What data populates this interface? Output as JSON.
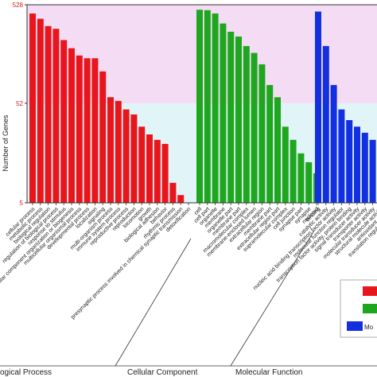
{
  "chart_data": {
    "type": "bar",
    "ylabel": "Number of Genes",
    "y_scale": "log",
    "ylim": [
      5,
      528
    ],
    "yticks": [
      5,
      52,
      528
    ],
    "band_colors": {
      "upper": "#f5dcf5",
      "lower": "#e1f4f7"
    },
    "group_titles": [
      "Biological Process",
      "Cellular Component",
      "Molecular Function"
    ],
    "group_titles_shown": [
      "ogical Process",
      "Cellular Component",
      "Molecular Function"
    ],
    "legend_entries": [
      "",
      "",
      "Mo"
    ],
    "series": [
      {
        "name": "Biological Process",
        "color": "#e8161c",
        "categories": [
          "cellular process",
          "metabolic process",
          "biological regulation",
          "regulation of biological process",
          "response to stimulus",
          "cellular component organization or biogenesis",
          "multicellular organismal process",
          "developmental process",
          "localization",
          "signaling",
          "multi-organism process",
          "immune system process",
          "reproductive process",
          "reproduction",
          "locomotion",
          "growth",
          "biological adhesion",
          "behavior",
          "rhythmic process",
          "presynaptic process involved in chemical synaptic transmission",
          "detoxification"
        ],
        "values": [
          430,
          380,
          320,
          300,
          230,
          190,
          160,
          150,
          150,
          110,
          60,
          55,
          45,
          40,
          30,
          25,
          22,
          20,
          8,
          6,
          0
        ]
      },
      {
        "name": "Cellular Component",
        "color": "#1fa61f",
        "categories": [
          "cell",
          "cell part",
          "organelle",
          "membrane",
          "organelle part",
          "membrane part",
          "macromolecular complex",
          "membrane-enclosed lumen",
          "extracellular region",
          "membrane part",
          "extracellular region part",
          "supramolecular complex",
          "cell junction",
          "synapse part",
          "synapse",
          "nucleoid"
        ],
        "values": [
          470,
          465,
          430,
          340,
          280,
          250,
          200,
          170,
          130,
          80,
          60,
          30,
          22,
          16,
          13,
          10
        ]
      },
      {
        "name": "Molecular Function",
        "color": "#1330e0",
        "categories": [
          "binding",
          "catalytic activity",
          "nucleic acid binding transcription factor activity",
          "molecular function regulator",
          "transcription factor activity, protein binding",
          "signal transducer activity",
          "transporter activity",
          "molecular transducer activity",
          "structural molecule activity",
          "antioxidant activity",
          "translation regulator activity"
        ],
        "values": [
          450,
          200,
          80,
          45,
          35,
          30,
          26,
          22,
          20,
          16,
          14
        ]
      }
    ],
    "tick_labels": {
      "bp": [
        "cellular process",
        "metabolic process",
        "biological regulation",
        "regulation of biological process",
        "response to stimulus",
        "cellular component organization or biogenesis",
        "multicellular organismal process",
        "developmental process",
        "localization",
        "signaling",
        "multi-organism process",
        "immune system process",
        "reproductive process",
        "reproduction",
        "locomotion",
        "growth",
        "biological adhesion",
        "behavior",
        "rhythmic process",
        "presynaptic process involved in chemical synaptic transmission",
        "detoxification"
      ],
      "cc": [
        "cell",
        "cell part",
        "organelle",
        "membrane",
        "organelle part",
        "membrane part",
        "macromolecular complex",
        "membrane-enclosed lumen",
        "extracellular region",
        "membrane part",
        "extracellular region part",
        "supramolecular complex",
        "cell junction",
        "synapse part",
        "synapse",
        "nucleoid"
      ],
      "mf": [
        "binding",
        "catalytic activity",
        "nucleic acid binding transcription factor activity",
        "molecular function regulator",
        "transcription factor activity, protein binding",
        "signal transducer activity",
        "transporter activity",
        "molecular transducer activity",
        "structural molecule activity",
        "antioxidant activity",
        "translation regulator activity"
      ]
    },
    "grid": false
  }
}
